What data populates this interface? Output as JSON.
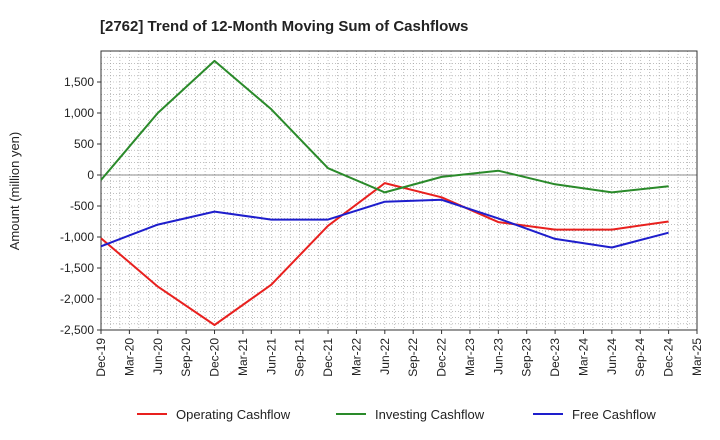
{
  "chart_data": {
    "type": "line",
    "title": "[2762]  Trend of 12-Month Moving Sum of Cashflows",
    "xlabel": "",
    "ylabel": "Amount (million yen)",
    "ylim": [
      -2500,
      2000
    ],
    "yticks": [
      -2500,
      -2000,
      -1500,
      -1000,
      -500,
      0,
      500,
      1000,
      1500
    ],
    "ytick_labels": [
      "-2,500",
      "-2,000",
      "-1,500",
      "-1,000",
      "-500",
      "0",
      "500",
      "1,000",
      "1,500"
    ],
    "x_tick_labels": [
      "Dec-19",
      "Mar-20",
      "Jun-20",
      "Sep-20",
      "Dec-20",
      "Mar-21",
      "Jun-21",
      "Sep-21",
      "Dec-21",
      "Mar-22",
      "Jun-22",
      "Sep-22",
      "Dec-22",
      "Mar-23",
      "Jun-23",
      "Sep-23",
      "Dec-23",
      "Mar-24",
      "Jun-24",
      "Sep-24",
      "Dec-24",
      "Mar-25"
    ],
    "grid": true,
    "legend_position": "bottom",
    "series": [
      {
        "name": "Operating Cashflow",
        "color": "#e8201e",
        "x": [
          "Dec-19",
          "Jun-20",
          "Dec-20",
          "Jun-21",
          "Dec-21",
          "Jun-22",
          "Dec-22",
          "Jun-23",
          "Dec-23",
          "Jun-24",
          "Dec-24"
        ],
        "values": [
          -1020,
          -1800,
          -2420,
          -1770,
          -820,
          -130,
          -360,
          -760,
          -880,
          -880,
          -750
        ]
      },
      {
        "name": "Investing Cashflow",
        "color": "#2a8a2a",
        "x": [
          "Dec-19",
          "Jun-20",
          "Dec-20",
          "Jun-21",
          "Dec-21",
          "Jun-22",
          "Dec-22",
          "Jun-23",
          "Dec-23",
          "Jun-24",
          "Dec-24"
        ],
        "values": [
          -80,
          1000,
          1840,
          1060,
          110,
          -280,
          -30,
          70,
          -150,
          -280,
          -180
        ]
      },
      {
        "name": "Free Cashflow",
        "color": "#1e1ecc",
        "x": [
          "Dec-19",
          "Jun-20",
          "Dec-20",
          "Jun-21",
          "Dec-21",
          "Jun-22",
          "Dec-22",
          "Jun-23",
          "Dec-23",
          "Jun-24",
          "Dec-24"
        ],
        "values": [
          -1150,
          -800,
          -590,
          -720,
          -720,
          -430,
          -400,
          -700,
          -1030,
          -1170,
          -930
        ]
      }
    ]
  }
}
